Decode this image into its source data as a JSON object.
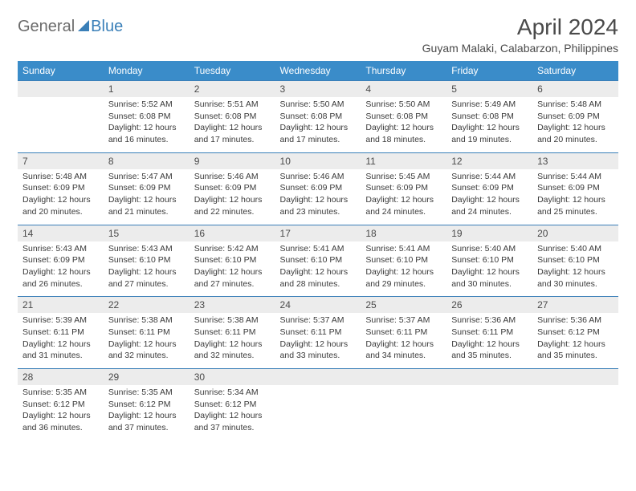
{
  "logo": {
    "text1": "General",
    "text2": "Blue"
  },
  "title": "April 2024",
  "location": "Guyam Malaki, Calabarzon, Philippines",
  "days": [
    "Sunday",
    "Monday",
    "Tuesday",
    "Wednesday",
    "Thursday",
    "Friday",
    "Saturday"
  ],
  "colors": {
    "header_bg": "#3a8cc9",
    "header_text": "#ffffff",
    "daynum_bg": "#ececec",
    "border": "#3a7fb8",
    "text": "#3a3a3a"
  },
  "weeks": [
    {
      "nums": [
        "",
        "1",
        "2",
        "3",
        "4",
        "5",
        "6"
      ],
      "cells": [
        "",
        "Sunrise: 5:52 AM\nSunset: 6:08 PM\nDaylight: 12 hours and 16 minutes.",
        "Sunrise: 5:51 AM\nSunset: 6:08 PM\nDaylight: 12 hours and 17 minutes.",
        "Sunrise: 5:50 AM\nSunset: 6:08 PM\nDaylight: 12 hours and 17 minutes.",
        "Sunrise: 5:50 AM\nSunset: 6:08 PM\nDaylight: 12 hours and 18 minutes.",
        "Sunrise: 5:49 AM\nSunset: 6:08 PM\nDaylight: 12 hours and 19 minutes.",
        "Sunrise: 5:48 AM\nSunset: 6:09 PM\nDaylight: 12 hours and 20 minutes."
      ]
    },
    {
      "nums": [
        "7",
        "8",
        "9",
        "10",
        "11",
        "12",
        "13"
      ],
      "cells": [
        "Sunrise: 5:48 AM\nSunset: 6:09 PM\nDaylight: 12 hours and 20 minutes.",
        "Sunrise: 5:47 AM\nSunset: 6:09 PM\nDaylight: 12 hours and 21 minutes.",
        "Sunrise: 5:46 AM\nSunset: 6:09 PM\nDaylight: 12 hours and 22 minutes.",
        "Sunrise: 5:46 AM\nSunset: 6:09 PM\nDaylight: 12 hours and 23 minutes.",
        "Sunrise: 5:45 AM\nSunset: 6:09 PM\nDaylight: 12 hours and 24 minutes.",
        "Sunrise: 5:44 AM\nSunset: 6:09 PM\nDaylight: 12 hours and 24 minutes.",
        "Sunrise: 5:44 AM\nSunset: 6:09 PM\nDaylight: 12 hours and 25 minutes."
      ]
    },
    {
      "nums": [
        "14",
        "15",
        "16",
        "17",
        "18",
        "19",
        "20"
      ],
      "cells": [
        "Sunrise: 5:43 AM\nSunset: 6:09 PM\nDaylight: 12 hours and 26 minutes.",
        "Sunrise: 5:43 AM\nSunset: 6:10 PM\nDaylight: 12 hours and 27 minutes.",
        "Sunrise: 5:42 AM\nSunset: 6:10 PM\nDaylight: 12 hours and 27 minutes.",
        "Sunrise: 5:41 AM\nSunset: 6:10 PM\nDaylight: 12 hours and 28 minutes.",
        "Sunrise: 5:41 AM\nSunset: 6:10 PM\nDaylight: 12 hours and 29 minutes.",
        "Sunrise: 5:40 AM\nSunset: 6:10 PM\nDaylight: 12 hours and 30 minutes.",
        "Sunrise: 5:40 AM\nSunset: 6:10 PM\nDaylight: 12 hours and 30 minutes."
      ]
    },
    {
      "nums": [
        "21",
        "22",
        "23",
        "24",
        "25",
        "26",
        "27"
      ],
      "cells": [
        "Sunrise: 5:39 AM\nSunset: 6:11 PM\nDaylight: 12 hours and 31 minutes.",
        "Sunrise: 5:38 AM\nSunset: 6:11 PM\nDaylight: 12 hours and 32 minutes.",
        "Sunrise: 5:38 AM\nSunset: 6:11 PM\nDaylight: 12 hours and 32 minutes.",
        "Sunrise: 5:37 AM\nSunset: 6:11 PM\nDaylight: 12 hours and 33 minutes.",
        "Sunrise: 5:37 AM\nSunset: 6:11 PM\nDaylight: 12 hours and 34 minutes.",
        "Sunrise: 5:36 AM\nSunset: 6:11 PM\nDaylight: 12 hours and 35 minutes.",
        "Sunrise: 5:36 AM\nSunset: 6:12 PM\nDaylight: 12 hours and 35 minutes."
      ]
    },
    {
      "nums": [
        "28",
        "29",
        "30",
        "",
        "",
        "",
        ""
      ],
      "cells": [
        "Sunrise: 5:35 AM\nSunset: 6:12 PM\nDaylight: 12 hours and 36 minutes.",
        "Sunrise: 5:35 AM\nSunset: 6:12 PM\nDaylight: 12 hours and 37 minutes.",
        "Sunrise: 5:34 AM\nSunset: 6:12 PM\nDaylight: 12 hours and 37 minutes.",
        "",
        "",
        "",
        ""
      ]
    }
  ]
}
